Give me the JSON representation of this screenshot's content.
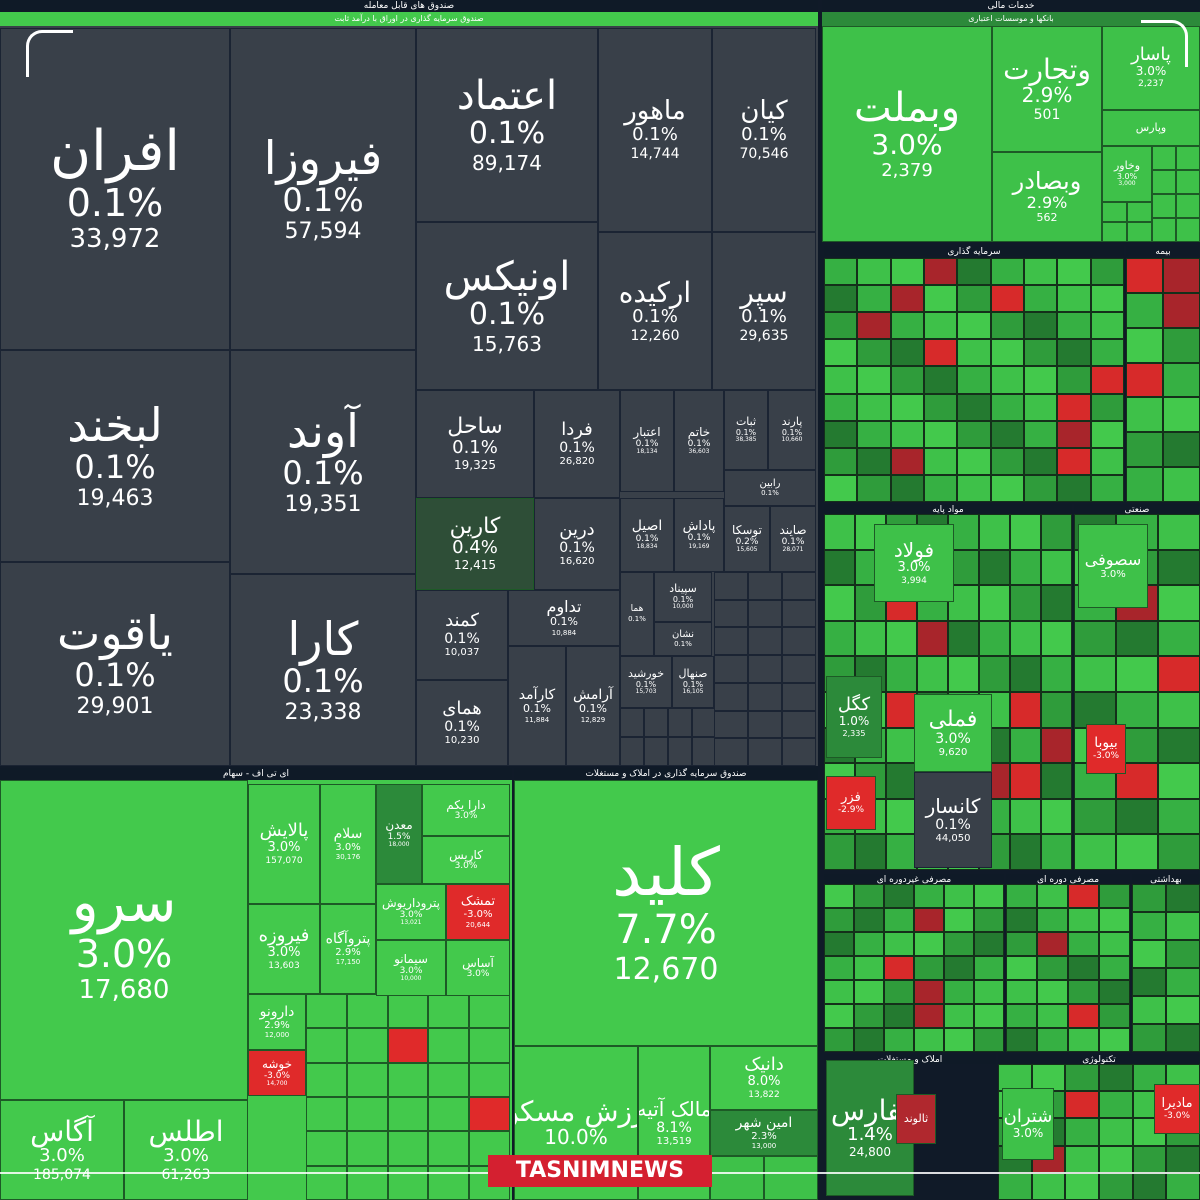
{
  "chart_data": {
    "type": "treemap",
    "groups": [
      {
        "id": "g1",
        "title": "صندوق های قابل معامله",
        "subtitle": "صندوق سرمایه گذاری در اوراق با درآمد ثابت"
      },
      {
        "id": "g2",
        "title": "خدمات مالی",
        "subtitle": "بانکها و موسسات اعتباری"
      },
      {
        "id": "g3",
        "title": "ای تی اف - سهام",
        "subtitle": ""
      },
      {
        "id": "g4",
        "title": "صندوق سرمایه گذاری در املاک و مستغلات",
        "subtitle": ""
      },
      {
        "id": "g5",
        "title": "سرمایه گذاری",
        "subtitle": ""
      },
      {
        "id": "g6",
        "title": "بیمه",
        "subtitle": ""
      },
      {
        "id": "g7",
        "title": "مواد پایه",
        "subtitle": ""
      },
      {
        "id": "g8",
        "title": "صنعتی",
        "subtitle": ""
      },
      {
        "id": "g9",
        "title": "مصرفی غیردوره ای",
        "subtitle": ""
      },
      {
        "id": "g10",
        "title": "مصرفی دوره ای",
        "subtitle": ""
      },
      {
        "id": "g11",
        "title": "بهداشتی",
        "subtitle": ""
      },
      {
        "id": "g12",
        "title": "املاک و مستغلات",
        "subtitle": ""
      },
      {
        "id": "g13",
        "title": "تکنولوژی",
        "subtitle": ""
      }
    ],
    "tiles": [
      {
        "group": "g1",
        "name": "افران",
        "change": "0.1%",
        "value": "33,972",
        "color": "#394049"
      },
      {
        "group": "g1",
        "name": "فیروزا",
        "change": "0.1%",
        "value": "57,594",
        "color": "#394049"
      },
      {
        "group": "g1",
        "name": "اعتماد",
        "change": "0.1%",
        "value": "89,174",
        "color": "#394049"
      },
      {
        "group": "g1",
        "name": "ماهور",
        "change": "0.1%",
        "value": "14,744",
        "color": "#394049"
      },
      {
        "group": "g1",
        "name": "کیان",
        "change": "0.1%",
        "value": "70,546",
        "color": "#394049"
      },
      {
        "group": "g1",
        "name": "اونیکس",
        "change": "0.1%",
        "value": "15,763",
        "color": "#394049"
      },
      {
        "group": "g1",
        "name": "ارکیده",
        "change": "0.1%",
        "value": "12,260",
        "color": "#394049"
      },
      {
        "group": "g1",
        "name": "سپر",
        "change": "0.1%",
        "value": "29,635",
        "color": "#394049"
      },
      {
        "group": "g1",
        "name": "لبخند",
        "change": "0.1%",
        "value": "19,463",
        "color": "#394049"
      },
      {
        "group": "g1",
        "name": "آوند",
        "change": "0.1%",
        "value": "19,351",
        "color": "#394049"
      },
      {
        "group": "g1",
        "name": "یاقوت",
        "change": "0.1%",
        "value": "29,901",
        "color": "#394049"
      },
      {
        "group": "g1",
        "name": "کارا",
        "change": "0.1%",
        "value": "23,338",
        "color": "#394049"
      },
      {
        "group": "g1",
        "name": "ساحل",
        "change": "0.1%",
        "value": "19,325",
        "color": "#394049"
      },
      {
        "group": "g1",
        "name": "فردا",
        "change": "0.1%",
        "value": "26,820",
        "color": "#394049"
      },
      {
        "group": "g1",
        "name": "اعتبار",
        "change": "0.1%",
        "value": "18,134",
        "color": "#394049"
      },
      {
        "group": "g1",
        "name": "خاتم",
        "change": "0.1%",
        "value": "36,603",
        "color": "#394049"
      },
      {
        "group": "g1",
        "name": "ثبات",
        "change": "0.1%",
        "value": "38,385",
        "color": "#394049"
      },
      {
        "group": "g1",
        "name": "پارند",
        "change": "0.1%",
        "value": "10,660",
        "color": "#394049"
      },
      {
        "group": "g1",
        "name": "رابین",
        "change": "0.1%",
        "value": "",
        "color": "#394049"
      },
      {
        "group": "g1",
        "name": "کارین",
        "change": "0.4%",
        "value": "12,415",
        "color": "#2e4e37"
      },
      {
        "group": "g1",
        "name": "درین",
        "change": "0.1%",
        "value": "16,620",
        "color": "#394049"
      },
      {
        "group": "g1",
        "name": "اصیل",
        "change": "0.1%",
        "value": "18,834",
        "color": "#394049"
      },
      {
        "group": "g1",
        "name": "پاداش",
        "change": "0.1%",
        "value": "19,169",
        "color": "#394049"
      },
      {
        "group": "g1",
        "name": "توسکا",
        "change": "0.2%",
        "value": "15,605",
        "color": "#394049"
      },
      {
        "group": "g1",
        "name": "صایند",
        "change": "0.1%",
        "value": "28,071",
        "color": "#394049"
      },
      {
        "group": "g1",
        "name": "کمند",
        "change": "0.1%",
        "value": "10,037",
        "color": "#394049"
      },
      {
        "group": "g1",
        "name": "تداوم",
        "change": "0.1%",
        "value": "10,884",
        "color": "#394049"
      },
      {
        "group": "g1",
        "name": "سپیناد",
        "change": "0.1%",
        "value": "10,000",
        "color": "#394049"
      },
      {
        "group": "g1",
        "name": "نشان",
        "change": "0.1%",
        "value": "",
        "color": "#394049"
      },
      {
        "group": "g1",
        "name": "هما",
        "change": "0.1%",
        "value": "",
        "color": "#394049"
      },
      {
        "group": "g1",
        "name": "همای",
        "change": "0.1%",
        "value": "10,230",
        "color": "#394049"
      },
      {
        "group": "g1",
        "name": "کارآمد",
        "change": "0.1%",
        "value": "11,884",
        "color": "#394049"
      },
      {
        "group": "g1",
        "name": "آرامش",
        "change": "0.1%",
        "value": "12,829",
        "color": "#394049"
      },
      {
        "group": "g1",
        "name": "خورشید",
        "change": "0.1%",
        "value": "15,703",
        "color": "#394049"
      },
      {
        "group": "g1",
        "name": "صنهال",
        "change": "0.1%",
        "value": "16,105",
        "color": "#394049"
      },
      {
        "group": "g2",
        "name": "وبملت",
        "change": "3.0%",
        "value": "2,379",
        "color": "#3ec149"
      },
      {
        "group": "g2",
        "name": "وتجارت",
        "change": "2.9%",
        "value": "501",
        "color": "#3ec149"
      },
      {
        "group": "g2",
        "name": "پاسار",
        "change": "3.0%",
        "value": "2,237",
        "color": "#3ec149"
      },
      {
        "group": "g2",
        "name": "وبصادر",
        "change": "2.9%",
        "value": "562",
        "color": "#3ec149"
      },
      {
        "group": "g2",
        "name": "وپارس",
        "change": "",
        "value": "",
        "color": "#3ec149"
      },
      {
        "group": "g2",
        "name": "وخاور",
        "change": "3.0%",
        "value": "3,000",
        "color": "#3ec149"
      },
      {
        "group": "g3",
        "name": "سرو",
        "change": "3.0%",
        "value": "17,680",
        "color": "#43c94c"
      },
      {
        "group": "g3",
        "name": "پالایش",
        "change": "3.0%",
        "value": "157,070",
        "color": "#43c94c"
      },
      {
        "group": "g3",
        "name": "سلام",
        "change": "3.0%",
        "value": "30,176",
        "color": "#43c94c"
      },
      {
        "group": "g3",
        "name": "معدن",
        "change": "1.5%",
        "value": "18,000",
        "color": "#2c8a3a"
      },
      {
        "group": "g3",
        "name": "دارا یکم",
        "change": "3.0%",
        "value": "",
        "color": "#43c94c"
      },
      {
        "group": "g3",
        "name": "کاریس",
        "change": "3.0%",
        "value": "",
        "color": "#43c94c"
      },
      {
        "group": "g3",
        "name": "پتروداریوش",
        "change": "3.0%",
        "value": "13,021",
        "color": "#43c94c"
      },
      {
        "group": "g3",
        "name": "تمشک",
        "change": "-3.0%",
        "value": "20,644",
        "color": "#e02a2a"
      },
      {
        "group": "g3",
        "name": "فیروزه",
        "change": "3.0%",
        "value": "13,603",
        "color": "#43c94c"
      },
      {
        "group": "g3",
        "name": "پتروآگاه",
        "change": "2.9%",
        "value": "17,150",
        "color": "#43c94c"
      },
      {
        "group": "g3",
        "name": "سیمانو",
        "change": "3.0%",
        "value": "10,000",
        "color": "#43c94c"
      },
      {
        "group": "g3",
        "name": "آساس",
        "change": "3.0%",
        "value": "",
        "color": "#43c94c"
      },
      {
        "group": "g3",
        "name": "دارونو",
        "change": "2.9%",
        "value": "12,000",
        "color": "#43c94c"
      },
      {
        "group": "g3",
        "name": "خوشه",
        "change": "-3.0%",
        "value": "14,700",
        "color": "#e02a2a"
      },
      {
        "group": "g3",
        "name": "آگاس",
        "change": "3.0%",
        "value": "185,074",
        "color": "#43c94c"
      },
      {
        "group": "g3",
        "name": "اطلس",
        "change": "3.0%",
        "value": "61,263",
        "color": "#43c94c"
      },
      {
        "group": "g4",
        "name": "کلید",
        "change": "7.7%",
        "value": "12,670",
        "color": "#43c94c"
      },
      {
        "group": "g4",
        "name": "ارزش مسکن",
        "change": "10.0%",
        "value": "",
        "color": "#43c94c"
      },
      {
        "group": "g4",
        "name": "مالک آتیه",
        "change": "8.1%",
        "value": "13,519",
        "color": "#43c94c"
      },
      {
        "group": "g4",
        "name": "دانیک",
        "change": "8.0%",
        "value": "13,822",
        "color": "#43c94c"
      },
      {
        "group": "g4",
        "name": "امین شهر",
        "change": "2.3%",
        "value": "13,000",
        "color": "#2c8a3a"
      },
      {
        "group": "g7",
        "name": "فولاد",
        "change": "3.0%",
        "value": "3,994",
        "color": "#3ec149"
      },
      {
        "group": "g7",
        "name": "کگل",
        "change": "1.0%",
        "value": "2,335",
        "color": "#2c8a3a"
      },
      {
        "group": "g7",
        "name": "فملی",
        "change": "3.0%",
        "value": "9,620",
        "color": "#3ec149"
      },
      {
        "group": "g7",
        "name": "کانسار",
        "change": "0.1%",
        "value": "44,050",
        "color": "#394049"
      },
      {
        "group": "g7",
        "name": "فزر",
        "change": "-2.9%",
        "value": "",
        "color": "#e02a2a"
      },
      {
        "group": "g8",
        "name": "سصوفی",
        "change": "3.0%",
        "value": "",
        "color": "#3ec149"
      },
      {
        "group": "g8",
        "name": "بیوبا",
        "change": "-3.0%",
        "value": "",
        "color": "#e02a2a"
      },
      {
        "group": "g12",
        "name": "ثفارس",
        "change": "1.4%",
        "value": "24,800",
        "color": "#2c8a3a"
      },
      {
        "group": "g12",
        "name": "ثالوند",
        "change": "",
        "value": "",
        "color": "#b0282e"
      },
      {
        "group": "g13",
        "name": "شتران",
        "change": "3.0%",
        "value": "",
        "color": "#3ec149"
      },
      {
        "group": "g13",
        "name": "مادیرا",
        "change": "-3.0%",
        "value": "",
        "color": "#e02a2a"
      }
    ],
    "watermark": "TASNIMNEWS"
  }
}
